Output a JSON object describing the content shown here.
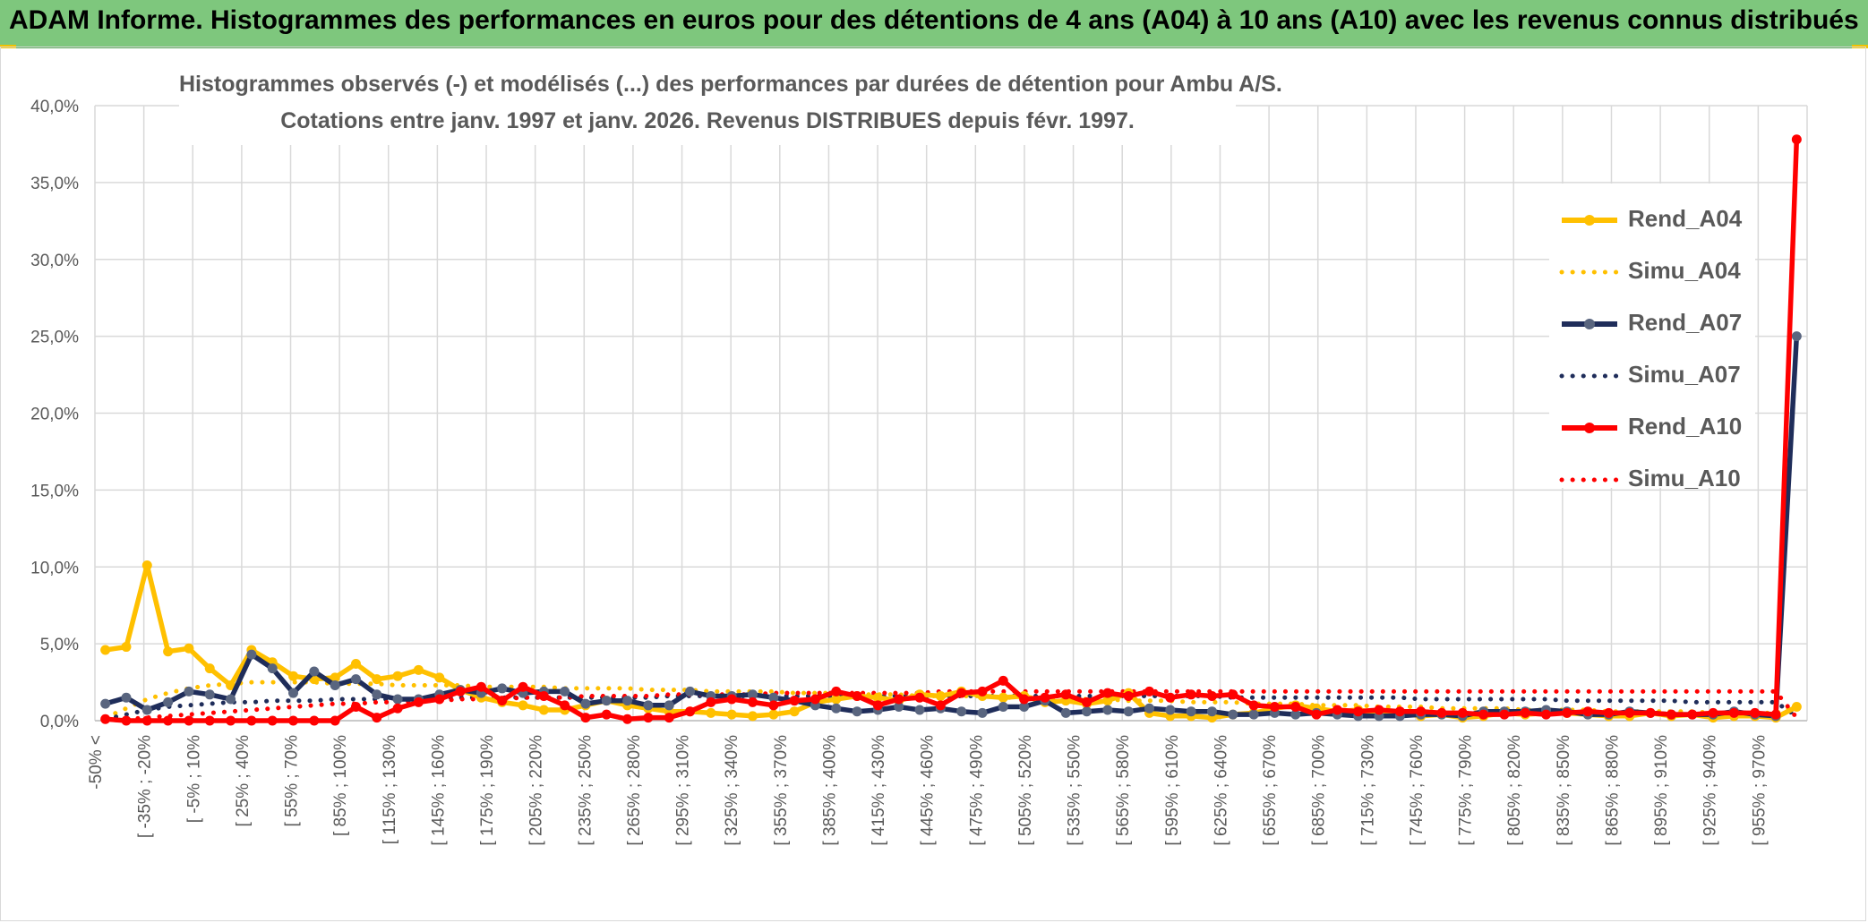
{
  "banner": {
    "title": "ADAM Informe. Histogrammes des performances en euros pour des détentions de 4 ans (A04) à 10 ans (A10) avec les revenus connus distribués"
  },
  "colors": {
    "banner_bg": "#7ec77d",
    "A04": "#ffc000",
    "A07": "#1f2d5a",
    "A07_marker": "#59657f",
    "A10": "#ff0000",
    "grid": "#d9d9d9",
    "text": "#595959"
  },
  "chart_data": {
    "type": "line",
    "subtitle_line1": "Histogrammes observés (-) et modélisés (...) des performances par durées de détention pour Ambu A/S.",
    "subtitle_line2": "Cotations entre janv. 1997 et janv. 2026.  Revenus DISTRIBUES depuis févr. 1997.",
    "xlabel": "",
    "ylabel": "",
    "ylim": [
      0,
      40
    ],
    "y_ticks": [
      "0,0%",
      "5,0%",
      "10,0%",
      "15,0%",
      "20,0%",
      "25,0%",
      "30,0%",
      "35,0%",
      "40,0%"
    ],
    "grid": true,
    "legend_position": "right",
    "x_tick_labels": [
      "-50% <",
      "[ -35% ; -20%",
      "[ -5% ; 10%",
      "[ 25% ; 40%",
      "[ 55% ; 70%",
      "[ 85% ; 100%",
      "[ 115% ; 130%",
      "[ 145% ; 160%",
      "[ 175% ; 190%",
      "[ 205% ; 220%",
      "[ 235% ; 250%",
      "[ 265% ; 280%",
      "[ 295% ; 310%",
      "[ 325% ; 340%",
      "[ 355% ; 370%",
      "[ 385% ; 400%",
      "[ 415% ; 430%",
      "[ 445% ; 460%",
      "[ 475% ; 490%",
      "[ 505% ; 520%",
      "[ 535% ; 550%",
      "[ 565% ; 580%",
      "[ 595% ; 610%",
      "[ 625% ; 640%",
      "[ 655% ; 670%",
      "[ 685% ; 700%",
      "[ 715% ; 730%",
      "[ 745% ; 760%",
      "[ 775% ; 790%",
      "[ 805% ; 820%",
      "[ 835% ; 850%",
      "[ 865% ; 880%",
      "[ 895% ; 910%",
      "[ 925% ; 940%",
      "[ 955% ; 970%"
    ],
    "series": [
      {
        "name": "Rend_A04",
        "style": "solid",
        "markers": true,
        "color": "#ffc000",
        "values": [
          4.6,
          4.8,
          10.1,
          4.5,
          4.7,
          3.4,
          2.3,
          4.6,
          3.8,
          2.9,
          2.7,
          2.8,
          3.7,
          2.7,
          2.9,
          3.3,
          2.8,
          2.0,
          1.5,
          1.2,
          1.0,
          0.7,
          0.7,
          1.0,
          1.3,
          1.0,
          0.8,
          0.6,
          0.6,
          0.5,
          0.4,
          0.3,
          0.4,
          0.6,
          1.2,
          1.4,
          1.6,
          1.5,
          1.3,
          1.7,
          1.6,
          1.9,
          1.6,
          1.5,
          1.6,
          1.2,
          1.3,
          1.1,
          1.3,
          1.8,
          0.5,
          0.3,
          0.3,
          0.2,
          0.4,
          0.5,
          0.8,
          1.0,
          0.8,
          0.6,
          0.7,
          0.5,
          0.5,
          0.3,
          0.4,
          0.2,
          0.3,
          0.5,
          0.4,
          0.5,
          0.5,
          0.4,
          0.3,
          0.3,
          0.5,
          0.3,
          0.4,
          0.2,
          0.3,
          0.3,
          0.2,
          0.9
        ]
      },
      {
        "name": "Simu_A04",
        "style": "dotted",
        "markers": false,
        "color": "#ffc000",
        "values": [
          0.2,
          0.8,
          1.4,
          1.8,
          2.1,
          2.3,
          2.4,
          2.5,
          2.5,
          2.5,
          2.5,
          2.4,
          2.4,
          2.4,
          2.3,
          2.3,
          2.3,
          2.3,
          2.2,
          2.2,
          2.2,
          2.2,
          2.1,
          2.1,
          2.1,
          2.1,
          2.0,
          2.0,
          2.0,
          1.9,
          1.9,
          1.9,
          1.9,
          1.8,
          1.8,
          1.8,
          1.7,
          1.7,
          1.7,
          1.6,
          1.6,
          1.6,
          1.6,
          1.5,
          1.5,
          1.5,
          1.4,
          1.4,
          1.4,
          1.3,
          1.3,
          1.3,
          1.2,
          1.2,
          1.2,
          1.1,
          1.1,
          1.1,
          1.0,
          1.0,
          1.0,
          0.9,
          0.9,
          0.9,
          0.8,
          0.8,
          0.8,
          0.8,
          0.7,
          0.7,
          0.7,
          0.7,
          0.6,
          0.6,
          0.6,
          0.6,
          0.6,
          0.5,
          0.5,
          0.5,
          0.5,
          1.0
        ]
      },
      {
        "name": "Rend_A07",
        "style": "solid",
        "markers": true,
        "color": "#1f2d5a",
        "values": [
          1.1,
          1.5,
          0.7,
          1.2,
          1.9,
          1.7,
          1.4,
          4.3,
          3.4,
          1.8,
          3.2,
          2.3,
          2.7,
          1.7,
          1.4,
          1.4,
          1.7,
          2.0,
          1.8,
          2.1,
          1.8,
          1.9,
          1.9,
          1.1,
          1.3,
          1.3,
          1.0,
          1.0,
          1.9,
          1.6,
          1.6,
          1.7,
          1.5,
          1.3,
          1.0,
          0.8,
          0.6,
          0.7,
          0.9,
          0.7,
          0.8,
          0.6,
          0.5,
          0.9,
          0.9,
          1.3,
          0.5,
          0.6,
          0.7,
          0.6,
          0.8,
          0.7,
          0.6,
          0.6,
          0.4,
          0.4,
          0.5,
          0.4,
          0.5,
          0.4,
          0.3,
          0.3,
          0.3,
          0.4,
          0.4,
          0.3,
          0.6,
          0.6,
          0.6,
          0.7,
          0.6,
          0.4,
          0.4,
          0.6,
          0.5,
          0.4,
          0.4,
          0.4,
          0.6,
          0.4,
          0.3,
          25.0
        ]
      },
      {
        "name": "Simu_A07",
        "style": "dotted",
        "markers": false,
        "color": "#1f2d5a",
        "values": [
          0.1,
          0.4,
          0.7,
          0.9,
          1.0,
          1.1,
          1.2,
          1.2,
          1.3,
          1.3,
          1.3,
          1.4,
          1.4,
          1.4,
          1.4,
          1.4,
          1.5,
          1.5,
          1.5,
          1.5,
          1.5,
          1.5,
          1.5,
          1.5,
          1.5,
          1.5,
          1.5,
          1.6,
          1.6,
          1.6,
          1.6,
          1.6,
          1.6,
          1.6,
          1.6,
          1.6,
          1.6,
          1.6,
          1.6,
          1.6,
          1.6,
          1.6,
          1.6,
          1.6,
          1.6,
          1.6,
          1.6,
          1.6,
          1.6,
          1.6,
          1.6,
          1.6,
          1.6,
          1.6,
          1.5,
          1.5,
          1.5,
          1.5,
          1.5,
          1.5,
          1.5,
          1.5,
          1.5,
          1.4,
          1.4,
          1.4,
          1.4,
          1.4,
          1.4,
          1.4,
          1.3,
          1.3,
          1.3,
          1.3,
          1.3,
          1.3,
          1.2,
          1.2,
          1.2,
          1.2,
          1.2,
          0.3
        ]
      },
      {
        "name": "Rend_A10",
        "style": "solid",
        "markers": true,
        "color": "#ff0000",
        "values": [
          0.1,
          0.0,
          0.0,
          0.0,
          0.0,
          0.0,
          0.0,
          0.0,
          0.0,
          0.0,
          0.0,
          0.0,
          0.9,
          0.2,
          0.8,
          1.2,
          1.4,
          1.9,
          2.2,
          1.3,
          2.2,
          1.6,
          1.0,
          0.2,
          0.4,
          0.1,
          0.2,
          0.2,
          0.6,
          1.2,
          1.4,
          1.2,
          1.0,
          1.3,
          1.4,
          1.9,
          1.6,
          1.0,
          1.4,
          1.5,
          1.0,
          1.8,
          1.9,
          2.6,
          1.4,
          1.5,
          1.7,
          1.2,
          1.8,
          1.6,
          1.9,
          1.5,
          1.7,
          1.6,
          1.7,
          1.0,
          0.9,
          0.9,
          0.4,
          0.7,
          0.6,
          0.7,
          0.6,
          0.6,
          0.5,
          0.5,
          0.4,
          0.4,
          0.5,
          0.4,
          0.5,
          0.6,
          0.5,
          0.5,
          0.5,
          0.4,
          0.4,
          0.5,
          0.5,
          0.5,
          0.4,
          37.8
        ]
      },
      {
        "name": "Simu_A10",
        "style": "dotted",
        "markers": false,
        "color": "#ff0000",
        "values": [
          0.0,
          0.1,
          0.2,
          0.3,
          0.4,
          0.5,
          0.6,
          0.7,
          0.8,
          0.9,
          1.0,
          1.1,
          1.1,
          1.2,
          1.2,
          1.3,
          1.3,
          1.4,
          1.4,
          1.4,
          1.5,
          1.5,
          1.5,
          1.6,
          1.6,
          1.6,
          1.6,
          1.7,
          1.7,
          1.7,
          1.7,
          1.7,
          1.8,
          1.8,
          1.8,
          1.8,
          1.8,
          1.8,
          1.8,
          1.8,
          1.9,
          1.9,
          1.9,
          1.9,
          1.9,
          1.9,
          1.9,
          1.9,
          1.9,
          1.9,
          1.9,
          1.9,
          1.9,
          1.9,
          1.9,
          1.9,
          1.9,
          1.9,
          1.9,
          1.9,
          1.9,
          1.9,
          1.9,
          1.9,
          1.9,
          1.9,
          1.9,
          1.9,
          1.9,
          1.9,
          1.9,
          1.9,
          1.9,
          1.9,
          1.9,
          1.9,
          1.9,
          1.9,
          1.9,
          1.9,
          1.9,
          0.2
        ]
      }
    ]
  }
}
